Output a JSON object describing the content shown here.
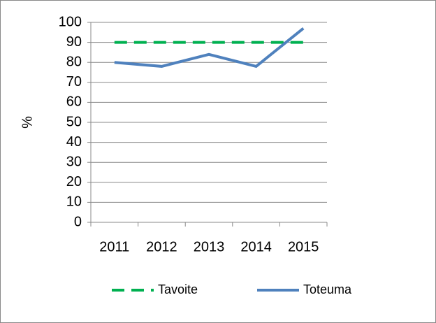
{
  "chart_data": {
    "type": "line",
    "ylabel": "%",
    "categories": [
      "2011",
      "2012",
      "2013",
      "2014",
      "2015"
    ],
    "series": [
      {
        "name": "Tavoite",
        "color": "#00b050",
        "dashed": true,
        "values": [
          90,
          90,
          90,
          90,
          90
        ]
      },
      {
        "name": "Toteuma",
        "color": "#4f81bd",
        "dashed": false,
        "values": [
          80,
          78,
          84,
          78,
          97
        ]
      }
    ],
    "ylim": [
      0,
      100
    ],
    "yticks": [
      0,
      10,
      20,
      30,
      40,
      50,
      60,
      70,
      80,
      90,
      100
    ],
    "grid": true,
    "legend": "bottom"
  }
}
